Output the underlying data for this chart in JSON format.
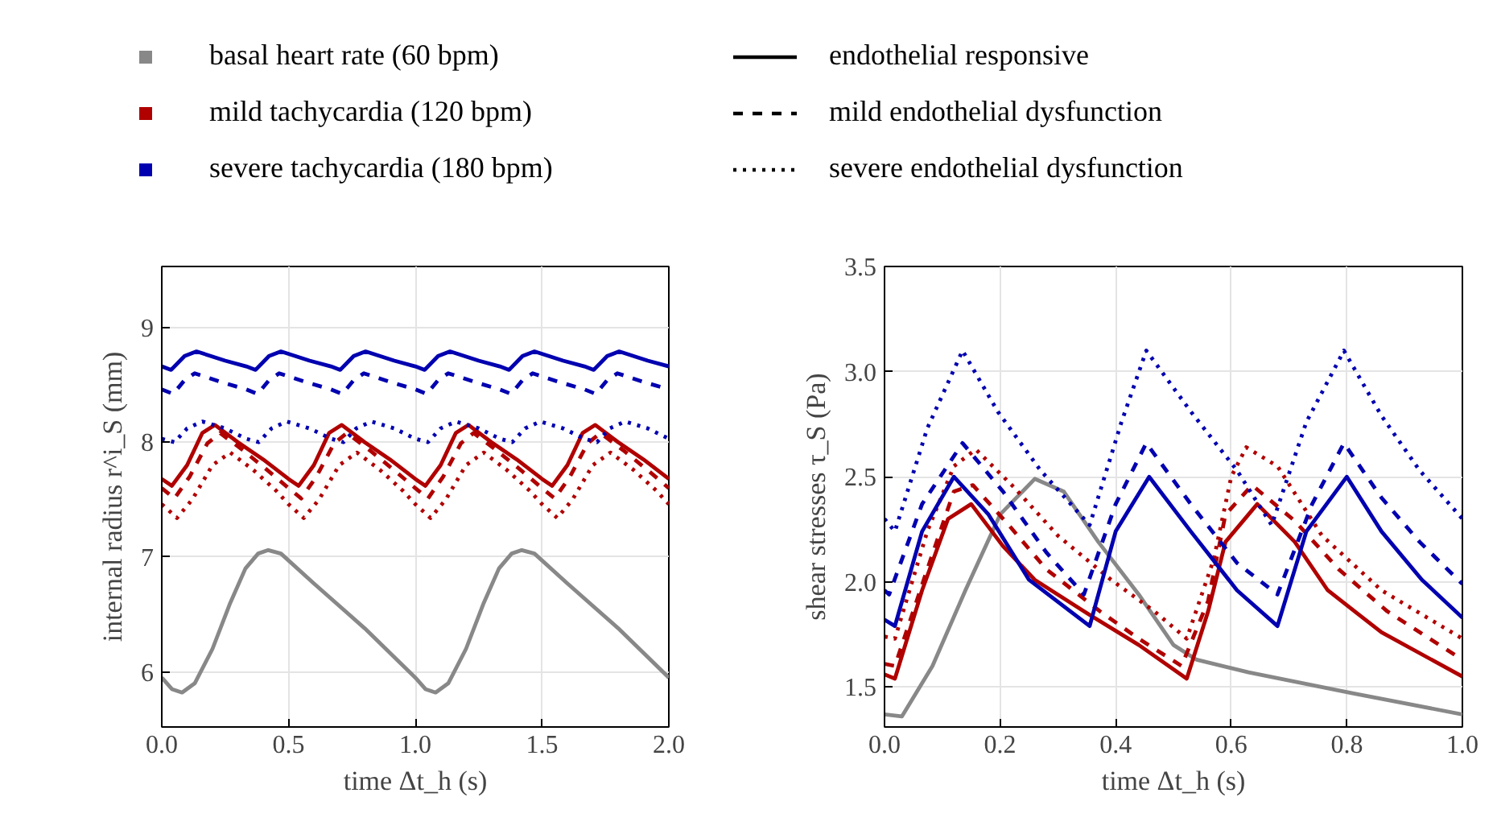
{
  "chart_data": [
    {
      "type": "line",
      "xlabel": "time Δt_h (s)",
      "ylabel": "internal radius r^i_S (mm)",
      "legend": "top",
      "grid": true,
      "annotations": [
        "endothelial responsive",
        "mild endothelial dysfunction",
        "severe endothelial dysfunction"
      ],
      "xlim": [
        0,
        2
      ],
      "xticks": [
        {
          "value": 0,
          "label": "0.0"
        },
        0.5,
        {
          "value": 1,
          "label": "1.0"
        },
        1.5,
        {
          "value": 2,
          "label": "2.0"
        }
      ],
      "ylim": [
        5.52,
        9.53
      ],
      "yticks": [
        6,
        7,
        8,
        9
      ],
      "series": [
        {
          "name": "basal heart rate (60 bpm)",
          "color": "#888888",
          "line_style": "solid",
          "x": [
            0,
            0.04,
            0.08,
            0.13,
            0.2,
            0.27,
            0.33,
            0.38,
            0.42,
            0.47,
            0.6,
            0.8,
            1.0,
            1.04,
            1.08,
            1.13,
            1.2,
            1.27,
            1.33,
            1.38,
            1.42,
            1.47,
            1.6,
            1.8,
            2.0
          ],
          "values": [
            5.95,
            5.85,
            5.82,
            5.9,
            6.2,
            6.6,
            6.9,
            7.03,
            7.06,
            7.03,
            6.77,
            6.38,
            5.95,
            5.85,
            5.82,
            5.9,
            6.2,
            6.6,
            6.9,
            7.03,
            7.06,
            7.03,
            6.77,
            6.38,
            5.95
          ]
        },
        {
          "name": "mild tachycardia (120 bpm)",
          "color": "#b00000",
          "line_style": "solid",
          "x": [
            0,
            0.04,
            0.1,
            0.16,
            0.21,
            0.3,
            0.4,
            0.5,
            0.54,
            0.6,
            0.66,
            0.71,
            0.8,
            0.9,
            1.0,
            1.04,
            1.1,
            1.16,
            1.21,
            1.3,
            1.4,
            1.5,
            1.54,
            1.6,
            1.66,
            1.71,
            1.8,
            1.9,
            2.0
          ],
          "values": [
            7.68,
            7.62,
            7.8,
            8.08,
            8.15,
            8.0,
            7.85,
            7.68,
            7.62,
            7.8,
            8.08,
            8.15,
            8.0,
            7.85,
            7.68,
            7.62,
            7.8,
            8.08,
            8.15,
            8.0,
            7.85,
            7.68,
            7.62,
            7.8,
            8.08,
            8.15,
            8.0,
            7.85,
            7.68
          ]
        },
        {
          "color": "#b00000",
          "line_style": "dashed",
          "x": [
            0,
            0.05,
            0.11,
            0.18,
            0.23,
            0.32,
            0.42,
            0.5,
            0.55,
            0.61,
            0.68,
            0.73,
            0.82,
            0.92,
            1.0,
            1.05,
            1.11,
            1.18,
            1.23,
            1.32,
            1.42,
            1.5,
            1.55,
            1.61,
            1.68,
            1.73,
            1.82,
            1.92,
            2.0
          ],
          "values": [
            7.6,
            7.51,
            7.7,
            7.99,
            8.08,
            7.93,
            7.75,
            7.6,
            7.51,
            7.7,
            7.99,
            8.08,
            7.93,
            7.75,
            7.6,
            7.51,
            7.7,
            7.99,
            8.08,
            7.93,
            7.75,
            7.6,
            7.51,
            7.7,
            7.99,
            8.08,
            7.93,
            7.75,
            7.6
          ]
        },
        {
          "color": "#b00000",
          "line_style": "dotted",
          "x": [
            0,
            0.06,
            0.12,
            0.2,
            0.27,
            0.36,
            0.45,
            0.5,
            0.56,
            0.62,
            0.7,
            0.77,
            0.86,
            0.95,
            1.0,
            1.06,
            1.12,
            1.2,
            1.27,
            1.36,
            1.45,
            1.5,
            1.56,
            1.62,
            1.7,
            1.77,
            1.86,
            1.95,
            2.0
          ],
          "values": [
            7.46,
            7.34,
            7.5,
            7.8,
            7.91,
            7.76,
            7.58,
            7.46,
            7.34,
            7.5,
            7.8,
            7.91,
            7.76,
            7.58,
            7.46,
            7.34,
            7.5,
            7.8,
            7.91,
            7.76,
            7.58,
            7.46,
            7.34,
            7.5,
            7.8,
            7.91,
            7.76,
            7.58,
            7.46
          ]
        },
        {
          "name": "severe tachycardia (180 bpm)",
          "color": "#0000b0",
          "line_style": "solid",
          "x": [
            0,
            0.037,
            0.09,
            0.137,
            0.25,
            0.333,
            0.37,
            0.423,
            0.47,
            0.583,
            0.667,
            0.704,
            0.757,
            0.804,
            0.917,
            1.0,
            1.037,
            1.09,
            1.137,
            1.25,
            1.333,
            1.37,
            1.423,
            1.47,
            1.583,
            1.667,
            1.704,
            1.757,
            1.804,
            1.917,
            2.0
          ],
          "values": [
            8.66,
            8.63,
            8.75,
            8.79,
            8.71,
            8.66,
            8.63,
            8.75,
            8.79,
            8.71,
            8.66,
            8.63,
            8.75,
            8.79,
            8.71,
            8.66,
            8.63,
            8.75,
            8.79,
            8.71,
            8.66,
            8.63,
            8.75,
            8.79,
            8.71,
            8.66,
            8.63,
            8.75,
            8.79,
            8.71,
            8.66
          ]
        },
        {
          "color": "#0000b0",
          "line_style": "dashed",
          "x": [
            0,
            0.045,
            0.09,
            0.13,
            0.24,
            0.333,
            0.378,
            0.423,
            0.463,
            0.573,
            0.667,
            0.712,
            0.757,
            0.797,
            0.907,
            1.0,
            1.045,
            1.09,
            1.13,
            1.24,
            1.333,
            1.378,
            1.423,
            1.463,
            1.573,
            1.667,
            1.712,
            1.757,
            1.797,
            1.907,
            2.0
          ],
          "values": [
            8.46,
            8.42,
            8.54,
            8.6,
            8.52,
            8.46,
            8.42,
            8.54,
            8.6,
            8.52,
            8.46,
            8.42,
            8.54,
            8.6,
            8.52,
            8.46,
            8.42,
            8.54,
            8.6,
            8.52,
            8.46,
            8.42,
            8.54,
            8.6,
            8.52,
            8.46,
            8.42,
            8.54,
            8.6,
            8.52,
            8.46
          ]
        },
        {
          "color": "#0000b0",
          "line_style": "dotted",
          "x": [
            0,
            0.05,
            0.1,
            0.16,
            0.25,
            0.333,
            0.383,
            0.433,
            0.493,
            0.583,
            0.667,
            0.717,
            0.767,
            0.827,
            0.917,
            1.0,
            1.05,
            1.1,
            1.16,
            1.25,
            1.333,
            1.383,
            1.433,
            1.493,
            1.583,
            1.667,
            1.717,
            1.767,
            1.827,
            1.917,
            2.0
          ],
          "values": [
            8.03,
            8.0,
            8.12,
            8.18,
            8.12,
            8.03,
            8.0,
            8.12,
            8.18,
            8.12,
            8.03,
            8.0,
            8.12,
            8.18,
            8.12,
            8.03,
            8.0,
            8.12,
            8.18,
            8.12,
            8.03,
            8.0,
            8.12,
            8.18,
            8.12,
            8.03,
            8.0,
            8.12,
            8.18,
            8.12,
            8.03
          ]
        }
      ]
    },
    {
      "type": "line",
      "xlabel": "time Δt_h (s)",
      "ylabel": "shear stresses τ_S (Pa)",
      "grid": true,
      "xlim": [
        0,
        1
      ],
      "xticks": [
        {
          "value": 0,
          "label": "0.0"
        },
        0.2,
        0.4,
        0.6,
        0.8,
        {
          "value": 1,
          "label": "1.0"
        }
      ],
      "ylim": [
        1.31,
        3.5
      ],
      "yticks": [
        1.5,
        {
          "value": 2,
          "label": "2.0"
        },
        2.5,
        {
          "value": 3,
          "label": "3.0"
        },
        3.5
      ],
      "series": [
        {
          "color": "#888888",
          "line_style": "solid",
          "x": [
            0,
            0.03,
            0.083,
            0.14,
            0.2,
            0.26,
            0.31,
            0.37,
            0.44,
            0.5,
            0.54,
            0.63,
            0.81,
            1.0
          ],
          "values": [
            1.37,
            1.36,
            1.6,
            1.96,
            2.32,
            2.49,
            2.43,
            2.19,
            1.94,
            1.7,
            1.63,
            1.57,
            1.47,
            1.37
          ]
        },
        {
          "color": "#b00000",
          "line_style": "solid",
          "x": [
            0,
            0.018,
            0.065,
            0.11,
            0.15,
            0.205,
            0.26,
            0.345,
            0.44,
            0.523,
            0.56,
            0.59,
            0.645,
            0.71,
            0.767,
            0.86,
            1.0
          ],
          "values": [
            1.56,
            1.54,
            1.96,
            2.3,
            2.37,
            2.17,
            2.01,
            1.86,
            1.7,
            1.54,
            1.86,
            2.19,
            2.37,
            2.19,
            1.96,
            1.76,
            1.55
          ]
        },
        {
          "color": "#b00000",
          "line_style": "dashed",
          "x": [
            0,
            0.018,
            0.074,
            0.12,
            0.153,
            0.215,
            0.28,
            0.373,
            0.44,
            0.514,
            0.56,
            0.59,
            0.636,
            0.71,
            0.786,
            0.87,
            1.0
          ],
          "values": [
            1.61,
            1.6,
            2.06,
            2.43,
            2.46,
            2.27,
            2.06,
            1.86,
            1.73,
            1.6,
            1.91,
            2.32,
            2.46,
            2.29,
            2.06,
            1.86,
            1.63
          ]
        },
        {
          "color": "#b00000",
          "line_style": "dotted",
          "x": [
            0,
            0.018,
            0.074,
            0.12,
            0.158,
            0.224,
            0.3,
            0.392,
            0.467,
            0.523,
            0.57,
            0.6,
            0.626,
            0.68,
            0.757,
            0.86,
            1.0
          ],
          "values": [
            1.74,
            1.73,
            2.24,
            2.55,
            2.63,
            2.45,
            2.22,
            2.01,
            1.86,
            1.73,
            2.11,
            2.5,
            2.64,
            2.55,
            2.22,
            1.96,
            1.73
          ]
        },
        {
          "color": "#0000b0",
          "line_style": "solid",
          "x": [
            0,
            0.018,
            0.065,
            0.12,
            0.18,
            0.25,
            0.355,
            0.4,
            0.458,
            0.53,
            0.61,
            0.68,
            0.73,
            0.8,
            0.86,
            0.93,
            1.0
          ],
          "values": [
            1.82,
            1.79,
            2.24,
            2.5,
            2.32,
            2.01,
            1.79,
            2.24,
            2.5,
            2.24,
            1.96,
            1.79,
            2.24,
            2.5,
            2.24,
            2.01,
            1.83
          ]
        },
        {
          "color": "#0000b0",
          "line_style": "dashed",
          "x": [
            0,
            0.008,
            0.065,
            0.135,
            0.205,
            0.28,
            0.345,
            0.4,
            0.453,
            0.53,
            0.61,
            0.68,
            0.74,
            0.795,
            0.86,
            0.926,
            1.0
          ],
          "values": [
            1.96,
            1.94,
            2.37,
            2.66,
            2.43,
            2.14,
            1.94,
            2.37,
            2.66,
            2.37,
            2.09,
            1.94,
            2.37,
            2.66,
            2.4,
            2.19,
            1.99
          ]
        },
        {
          "color": "#0000b0",
          "line_style": "dotted",
          "x": [
            0,
            0.018,
            0.074,
            0.135,
            0.196,
            0.27,
            0.355,
            0.41,
            0.453,
            0.53,
            0.61,
            0.67,
            0.73,
            0.795,
            0.86,
            0.926,
            1.0
          ],
          "values": [
            2.3,
            2.24,
            2.73,
            3.1,
            2.81,
            2.53,
            2.27,
            2.76,
            3.1,
            2.81,
            2.53,
            2.27,
            2.76,
            3.1,
            2.79,
            2.53,
            2.3
          ]
        }
      ]
    }
  ]
}
